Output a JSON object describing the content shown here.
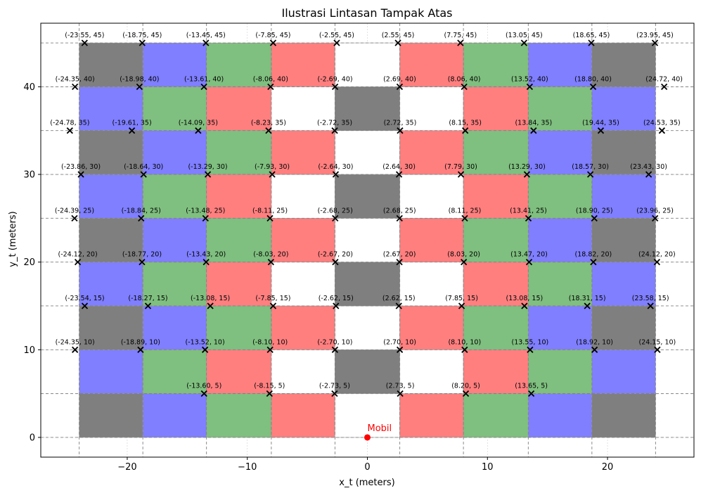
{
  "chart_data": {
    "type": "scatter",
    "title": "Ilustrasi Lintasan Tampak Atas",
    "xlabel": "x_t (meters)",
    "ylabel": "y_t (meters)",
    "xlim": [
      -27.2,
      27.2
    ],
    "ylim": [
      -2.25,
      47.25
    ],
    "xticks": [
      -20,
      -10,
      0,
      10,
      20
    ],
    "yticks": [
      0,
      10,
      20,
      30,
      40
    ],
    "grid": true,
    "colors": {
      "blue": "#7f7fff",
      "green": "#7fbf7f",
      "red": "#ff7f7f",
      "gray": "#7f7f7f",
      "white": "#ffffff",
      "marker": "#000000",
      "car": "#ff0000",
      "guide": "#808080"
    },
    "tile_columns_x": [
      -24.0,
      -18.7,
      -13.4,
      -8.0,
      -2.7,
      2.7,
      8.0,
      13.4,
      18.7,
      24.0
    ],
    "tile_rows_y": [
      0,
      5,
      10,
      15,
      20,
      25,
      30,
      35,
      40,
      45
    ],
    "tile_color_rows": [
      [
        "gray",
        "blue",
        "green",
        "red",
        "white",
        "red",
        "green",
        "blue",
        "gray"
      ],
      [
        "blue",
        "green",
        "red",
        "white",
        "gray",
        "white",
        "red",
        "green",
        "blue"
      ],
      [
        "gray",
        "blue",
        "green",
        "red",
        "white",
        "red",
        "green",
        "blue",
        "gray"
      ],
      [
        "blue",
        "green",
        "red",
        "white",
        "gray",
        "white",
        "red",
        "green",
        "blue"
      ],
      [
        "gray",
        "blue",
        "green",
        "red",
        "white",
        "red",
        "green",
        "blue",
        "gray"
      ],
      [
        "blue",
        "green",
        "red",
        "white",
        "gray",
        "white",
        "red",
        "green",
        "blue"
      ],
      [
        "gray",
        "blue",
        "green",
        "red",
        "white",
        "red",
        "green",
        "blue",
        "gray"
      ],
      [
        "blue",
        "green",
        "red",
        "white",
        "gray",
        "white",
        "red",
        "green",
        "blue"
      ],
      [
        "gray",
        "blue",
        "green",
        "red",
        "white",
        "red",
        "green",
        "blue",
        "gray"
      ]
    ],
    "points": [
      {
        "x": -23.55,
        "y": 45,
        "label": "(-23.55, 45)"
      },
      {
        "x": -18.75,
        "y": 45,
        "label": "(-18.75, 45)"
      },
      {
        "x": -13.45,
        "y": 45,
        "label": "(-13.45, 45)"
      },
      {
        "x": -7.85,
        "y": 45,
        "label": "(-7.85, 45)"
      },
      {
        "x": -2.55,
        "y": 45,
        "label": "(-2.55, 45)"
      },
      {
        "x": 2.55,
        "y": 45,
        "label": "(2.55, 45)"
      },
      {
        "x": 7.75,
        "y": 45,
        "label": "(7.75, 45)"
      },
      {
        "x": 13.05,
        "y": 45,
        "label": "(13.05, 45)"
      },
      {
        "x": 18.65,
        "y": 45,
        "label": "(18.65, 45)"
      },
      {
        "x": 23.95,
        "y": 45,
        "label": "(23.95, 45)"
      },
      {
        "x": -24.35,
        "y": 40,
        "label": "(-24.35, 40)"
      },
      {
        "x": -18.98,
        "y": 40,
        "label": "(-18.98, 40)"
      },
      {
        "x": -13.61,
        "y": 40,
        "label": "(-13.61, 40)"
      },
      {
        "x": -8.06,
        "y": 40,
        "label": "(-8.06, 40)"
      },
      {
        "x": -2.69,
        "y": 40,
        "label": "(-2.69, 40)"
      },
      {
        "x": 2.69,
        "y": 40,
        "label": "(2.69, 40)"
      },
      {
        "x": 8.06,
        "y": 40,
        "label": "(8.06, 40)"
      },
      {
        "x": 13.52,
        "y": 40,
        "label": "(13.52, 40)"
      },
      {
        "x": 18.8,
        "y": 40,
        "label": "(18.80, 40)"
      },
      {
        "x": 24.72,
        "y": 40,
        "label": "(24.72, 40)"
      },
      {
        "x": -24.78,
        "y": 35,
        "label": "(-24.78, 35)"
      },
      {
        "x": -19.61,
        "y": 35,
        "label": "(-19.61, 35)"
      },
      {
        "x": -14.09,
        "y": 35,
        "label": "(-14.09, 35)"
      },
      {
        "x": -8.23,
        "y": 35,
        "label": "(-8.23, 35)"
      },
      {
        "x": -2.72,
        "y": 35,
        "label": "(-2.72, 35)"
      },
      {
        "x": 2.72,
        "y": 35,
        "label": "(2.72, 35)"
      },
      {
        "x": 8.15,
        "y": 35,
        "label": "(8.15, 35)"
      },
      {
        "x": 13.84,
        "y": 35,
        "label": "(13.84, 35)"
      },
      {
        "x": 19.44,
        "y": 35,
        "label": "(19.44, 35)"
      },
      {
        "x": 24.53,
        "y": 35,
        "label": "(24.53, 35)"
      },
      {
        "x": -23.86,
        "y": 30,
        "label": "(-23.86, 30)"
      },
      {
        "x": -18.64,
        "y": 30,
        "label": "(-18.64, 30)"
      },
      {
        "x": -13.29,
        "y": 30,
        "label": "(-13.29, 30)"
      },
      {
        "x": -7.93,
        "y": 30,
        "label": "(-7.93, 30)"
      },
      {
        "x": -2.64,
        "y": 30,
        "label": "(-2.64, 30)"
      },
      {
        "x": 2.64,
        "y": 30,
        "label": "(2.64, 30)"
      },
      {
        "x": 7.79,
        "y": 30,
        "label": "(7.79, 30)"
      },
      {
        "x": 13.29,
        "y": 30,
        "label": "(13.29, 30)"
      },
      {
        "x": 18.57,
        "y": 30,
        "label": "(18.57, 30)"
      },
      {
        "x": 23.43,
        "y": 30,
        "label": "(23.43, 30)"
      },
      {
        "x": -24.39,
        "y": 25,
        "label": "(-24.39, 25)"
      },
      {
        "x": -18.84,
        "y": 25,
        "label": "(-18.84, 25)"
      },
      {
        "x": -13.48,
        "y": 25,
        "label": "(-13.48, 25)"
      },
      {
        "x": -8.11,
        "y": 25,
        "label": "(-8.11, 25)"
      },
      {
        "x": -2.68,
        "y": 25,
        "label": "(-2.68, 25)"
      },
      {
        "x": 2.68,
        "y": 25,
        "label": "(2.68, 25)"
      },
      {
        "x": 8.11,
        "y": 25,
        "label": "(8.11, 25)"
      },
      {
        "x": 13.41,
        "y": 25,
        "label": "(13.41, 25)"
      },
      {
        "x": 18.9,
        "y": 25,
        "label": "(18.90, 25)"
      },
      {
        "x": 23.96,
        "y": 25,
        "label": "(23.96, 25)"
      },
      {
        "x": -24.12,
        "y": 20,
        "label": "(-24.12, 20)"
      },
      {
        "x": -18.77,
        "y": 20,
        "label": "(-18.77, 20)"
      },
      {
        "x": -13.43,
        "y": 20,
        "label": "(-13.43, 20)"
      },
      {
        "x": -8.03,
        "y": 20,
        "label": "(-8.03, 20)"
      },
      {
        "x": -2.67,
        "y": 20,
        "label": "(-2.67, 20)"
      },
      {
        "x": 2.67,
        "y": 20,
        "label": "(2.67, 20)"
      },
      {
        "x": 8.03,
        "y": 20,
        "label": "(8.03, 20)"
      },
      {
        "x": 13.47,
        "y": 20,
        "label": "(13.47, 20)"
      },
      {
        "x": 18.82,
        "y": 20,
        "label": "(18.82, 20)"
      },
      {
        "x": 24.12,
        "y": 20,
        "label": "(24.12, 20)"
      },
      {
        "x": -23.54,
        "y": 15,
        "label": "(-23.54, 15)"
      },
      {
        "x": -18.27,
        "y": 15,
        "label": "(-18.27, 15)"
      },
      {
        "x": -13.08,
        "y": 15,
        "label": "(-13.08, 15)"
      },
      {
        "x": -7.85,
        "y": 15,
        "label": "(-7.85, 15)"
      },
      {
        "x": -2.62,
        "y": 15,
        "label": "(-2.62, 15)"
      },
      {
        "x": 2.62,
        "y": 15,
        "label": "(2.62, 15)"
      },
      {
        "x": 7.85,
        "y": 15,
        "label": "(7.85, 15)"
      },
      {
        "x": 13.08,
        "y": 15,
        "label": "(13.08, 15)"
      },
      {
        "x": 18.31,
        "y": 15,
        "label": "(18.31, 15)"
      },
      {
        "x": 23.58,
        "y": 15,
        "label": "(23.58, 15)"
      },
      {
        "x": -24.35,
        "y": 10,
        "label": "(-24.35, 10)"
      },
      {
        "x": -18.89,
        "y": 10,
        "label": "(-18.89, 10)"
      },
      {
        "x": -13.52,
        "y": 10,
        "label": "(-13.52, 10)"
      },
      {
        "x": -8.1,
        "y": 10,
        "label": "(-8.10, 10)"
      },
      {
        "x": -2.7,
        "y": 10,
        "label": "(-2.70, 10)"
      },
      {
        "x": 2.7,
        "y": 10,
        "label": "(2.70, 10)"
      },
      {
        "x": 8.1,
        "y": 10,
        "label": "(8.10, 10)"
      },
      {
        "x": 13.55,
        "y": 10,
        "label": "(13.55, 10)"
      },
      {
        "x": 18.92,
        "y": 10,
        "label": "(18.92, 10)"
      },
      {
        "x": 24.15,
        "y": 10,
        "label": "(24.15, 10)"
      },
      {
        "x": -13.6,
        "y": 5,
        "label": "(-13.60, 5)"
      },
      {
        "x": -8.15,
        "y": 5,
        "label": "(-8.15, 5)"
      },
      {
        "x": -2.73,
        "y": 5,
        "label": "(-2.73, 5)"
      },
      {
        "x": 2.73,
        "y": 5,
        "label": "(2.73, 5)"
      },
      {
        "x": 8.2,
        "y": 5,
        "label": "(8.20, 5)"
      },
      {
        "x": 13.65,
        "y": 5,
        "label": "(13.65, 5)"
      }
    ],
    "car": {
      "x": 0,
      "y": 0,
      "label": "Mobil"
    }
  }
}
